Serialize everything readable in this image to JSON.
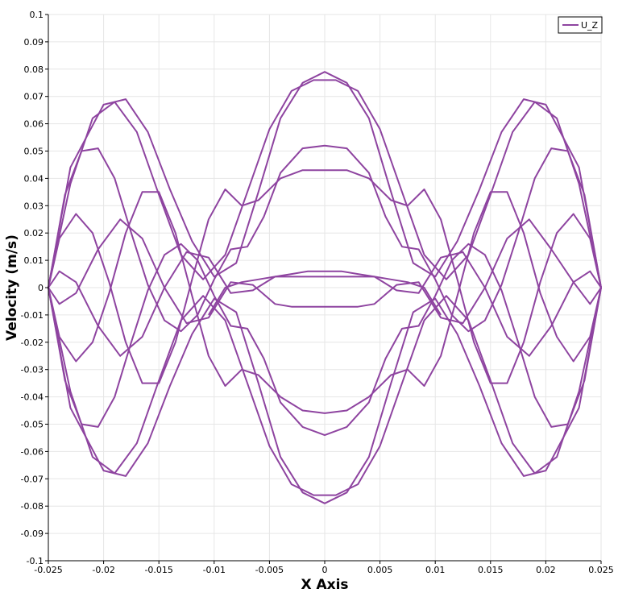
{
  "chart_data": {
    "type": "line",
    "xlabel": "X Axis",
    "ylabel": "Velocity (m/s)",
    "xlim": [
      -0.025,
      0.025
    ],
    "ylim": [
      -0.1,
      0.1
    ],
    "grid": true,
    "legend_position": "top-right",
    "x_ticks": [
      -0.025,
      -0.02,
      -0.015,
      -0.01,
      -0.005,
      0,
      0.005,
      0.01,
      0.015,
      0.02,
      0.025
    ],
    "x_tick_labels": [
      "-0.025",
      "-0.02",
      "-0.015",
      "-0.01",
      "-0.005",
      "0",
      "0.005",
      "0.01",
      "0.015",
      "0.02",
      "0.025"
    ],
    "y_ticks": [
      -0.1,
      -0.09,
      -0.08,
      -0.07,
      -0.06,
      -0.05,
      -0.04,
      -0.03,
      -0.02,
      -0.01,
      0,
      0.01,
      0.02,
      0.03,
      0.04,
      0.05,
      0.06,
      0.07,
      0.08,
      0.09,
      0.1
    ],
    "y_tick_labels": [
      "-0.1",
      "-0.09",
      "-0.08",
      "-0.07",
      "-0.06",
      "-0.05",
      "-0.04",
      "-0.03",
      "-0.02",
      "-0.01",
      "0",
      "0.01",
      "0.02",
      "0.03",
      "0.04",
      "0.05",
      "0.06",
      "0.07",
      "0.08",
      "0.09",
      "0.1"
    ],
    "series_color": "#8e44a0",
    "series": [
      {
        "name": "U_Z",
        "paths": [
          {
            "x": [
              -0.025,
              -0.023,
              -0.02,
              -0.018,
              -0.016,
              -0.014,
              -0.012,
              -0.01,
              -0.008,
              -0.006,
              -0.004,
              -0.002,
              0,
              0.002,
              0.004,
              0.006,
              0.008,
              0.01,
              0.012,
              0.014,
              0.016,
              0.018,
              0.02,
              0.023,
              0.025
            ],
            "y": [
              0,
              0.044,
              0.067,
              0.069,
              0.057,
              0.036,
              0.017,
              0.004,
              0.009,
              0.035,
              0.062,
              0.075,
              0.079,
              0.075,
              0.062,
              0.035,
              0.009,
              0.004,
              0.017,
              0.036,
              0.057,
              0.069,
              0.067,
              0.044,
              0
            ]
          },
          {
            "x": [
              -0.025,
              -0.023,
              -0.021,
              -0.019,
              -0.017,
              -0.015,
              -0.013,
              -0.011,
              -0.009,
              -0.007,
              -0.005,
              -0.003,
              -0.001,
              0,
              0.001,
              0.003,
              0.005,
              0.007,
              0.009,
              0.011,
              0.013,
              0.015,
              0.017,
              0.019,
              0.021,
              0.023,
              0.025
            ],
            "y": [
              0,
              0.038,
              0.062,
              0.068,
              0.057,
              0.034,
              0.012,
              0.003,
              0.012,
              0.035,
              0.058,
              0.072,
              0.076,
              0.076,
              0.076,
              0.072,
              0.058,
              0.035,
              0.012,
              0.003,
              0.012,
              0.034,
              0.057,
              0.068,
              0.062,
              0.038,
              0
            ]
          },
          {
            "x": [
              -0.025,
              -0.023,
              -0.021,
              -0.019,
              -0.017,
              -0.015,
              -0.013,
              -0.011,
              -0.009,
              -0.007,
              -0.005,
              -0.003,
              -0.001,
              0,
              0.001,
              0.003,
              0.005,
              0.007,
              0.009,
              0.011,
              0.013,
              0.015,
              0.017,
              0.019,
              0.021,
              0.023,
              0.025
            ],
            "y": [
              0,
              -0.038,
              -0.062,
              -0.068,
              -0.057,
              -0.034,
              -0.012,
              -0.003,
              -0.012,
              -0.035,
              -0.058,
              -0.072,
              -0.076,
              -0.076,
              -0.076,
              -0.072,
              -0.058,
              -0.035,
              -0.012,
              -0.003,
              -0.012,
              -0.034,
              -0.057,
              -0.068,
              -0.062,
              -0.038,
              0
            ]
          },
          {
            "x": [
              -0.025,
              -0.023,
              -0.02,
              -0.018,
              -0.016,
              -0.014,
              -0.012,
              -0.01,
              -0.008,
              -0.006,
              -0.004,
              -0.002,
              0,
              0.002,
              0.004,
              0.006,
              0.008,
              0.01,
              0.012,
              0.014,
              0.016,
              0.018,
              0.02,
              0.023,
              0.025
            ],
            "y": [
              0,
              -0.044,
              -0.067,
              -0.069,
              -0.057,
              -0.036,
              -0.017,
              -0.004,
              -0.009,
              -0.035,
              -0.062,
              -0.075,
              -0.079,
              -0.075,
              -0.062,
              -0.035,
              -0.009,
              -0.004,
              -0.017,
              -0.036,
              -0.057,
              -0.069,
              -0.067,
              -0.044,
              0
            ]
          },
          {
            "x": [
              -0.025,
              -0.0235,
              -0.022,
              -0.0205,
              -0.019,
              -0.0175,
              -0.016,
              -0.0145,
              -0.013,
              -0.0115,
              -0.01,
              -0.0085,
              -0.007,
              -0.0055,
              -0.004,
              -0.002,
              0,
              0.002,
              0.004,
              0.0055,
              0.007,
              0.0085,
              0.01,
              0.0115,
              0.013,
              0.0145,
              0.016,
              0.0175,
              0.019,
              0.0205,
              0.022,
              0.0235,
              0.025
            ],
            "y": [
              0,
              0.034,
              0.05,
              0.051,
              0.04,
              0.02,
              0.001,
              -0.012,
              -0.016,
              -0.01,
              0.003,
              0.014,
              0.015,
              0.026,
              0.042,
              0.051,
              0.052,
              0.051,
              0.042,
              0.026,
              0.015,
              0.014,
              0.003,
              -0.01,
              -0.016,
              -0.012,
              0.001,
              0.02,
              0.04,
              0.051,
              0.05,
              0.034,
              0
            ]
          },
          {
            "x": [
              -0.025,
              -0.0235,
              -0.022,
              -0.0205,
              -0.019,
              -0.0175,
              -0.016,
              -0.0145,
              -0.013,
              -0.0115,
              -0.01,
              -0.0085,
              -0.007,
              -0.0055,
              -0.004,
              -0.002,
              0,
              0.002,
              0.004,
              0.0055,
              0.007,
              0.0085,
              0.01,
              0.0115,
              0.013,
              0.0145,
              0.016,
              0.0175,
              0.019,
              0.0205,
              0.022,
              0.0235,
              0.025
            ],
            "y": [
              0,
              -0.034,
              -0.05,
              -0.051,
              -0.04,
              -0.02,
              -0.001,
              0.012,
              0.016,
              0.01,
              -0.003,
              -0.014,
              -0.015,
              -0.026,
              -0.042,
              -0.051,
              -0.054,
              -0.051,
              -0.042,
              -0.026,
              -0.015,
              -0.014,
              -0.003,
              0.01,
              0.016,
              0.012,
              -0.001,
              -0.02,
              -0.04,
              -0.051,
              -0.05,
              -0.034,
              0
            ]
          },
          {
            "x": [
              -0.025,
              -0.024,
              -0.0225,
              -0.021,
              -0.0195,
              -0.018,
              -0.0165,
              -0.015,
              -0.0135,
              -0.012,
              -0.0105,
              -0.009,
              -0.0075,
              -0.006,
              -0.004,
              -0.002,
              0,
              0.002,
              0.004,
              0.006,
              0.0075,
              0.009,
              0.0105,
              0.012,
              0.0135,
              0.015,
              0.0165,
              0.018,
              0.0195,
              0.021,
              0.0225,
              0.024,
              0.025
            ],
            "y": [
              0,
              0.018,
              0.027,
              0.02,
              0.002,
              -0.02,
              -0.035,
              -0.035,
              -0.02,
              0.003,
              0.025,
              0.036,
              0.03,
              0.032,
              0.04,
              0.043,
              0.043,
              0.043,
              0.04,
              0.032,
              0.03,
              0.036,
              0.025,
              0.003,
              -0.02,
              -0.035,
              -0.035,
              -0.02,
              0.002,
              0.02,
              0.027,
              0.018,
              0
            ]
          },
          {
            "x": [
              -0.025,
              -0.024,
              -0.0225,
              -0.021,
              -0.0195,
              -0.018,
              -0.0165,
              -0.015,
              -0.0135,
              -0.012,
              -0.0105,
              -0.009,
              -0.0075,
              -0.006,
              -0.004,
              -0.002,
              0,
              0.002,
              0.004,
              0.006,
              0.0075,
              0.009,
              0.0105,
              0.012,
              0.0135,
              0.015,
              0.0165,
              0.018,
              0.0195,
              0.021,
              0.0225,
              0.024,
              0.025
            ],
            "y": [
              0,
              -0.018,
              -0.027,
              -0.02,
              -0.002,
              0.02,
              0.035,
              0.035,
              0.02,
              -0.003,
              -0.025,
              -0.036,
              -0.03,
              -0.032,
              -0.04,
              -0.045,
              -0.046,
              -0.045,
              -0.04,
              -0.032,
              -0.03,
              -0.036,
              -0.025,
              -0.003,
              0.02,
              0.035,
              0.035,
              0.02,
              -0.002,
              -0.018,
              -0.027,
              -0.018,
              0
            ]
          },
          {
            "x": [
              -0.025,
              -0.024,
              -0.0225,
              -0.0205,
              -0.0185,
              -0.0165,
              -0.0145,
              -0.0125,
              -0.0105,
              -0.0085,
              -0.0065,
              -0.0045,
              -0.003,
              -0.0015,
              0,
              0.0015,
              0.003,
              0.0045,
              0.0065,
              0.0085,
              0.0105,
              0.0125,
              0.0145,
              0.0165,
              0.0185,
              0.0205,
              0.0225,
              0.024,
              0.025
            ],
            "y": [
              0,
              0.006,
              0.002,
              -0.014,
              -0.025,
              -0.018,
              0.0,
              0.013,
              0.011,
              -0.002,
              -0.001,
              0.004,
              0.005,
              0.006,
              0.006,
              0.006,
              0.005,
              0.004,
              -0.001,
              -0.002,
              0.011,
              0.013,
              0.0,
              -0.018,
              -0.025,
              -0.014,
              0.002,
              0.006,
              0
            ]
          },
          {
            "x": [
              -0.025,
              -0.024,
              -0.0225,
              -0.0205,
              -0.0185,
              -0.0165,
              -0.0145,
              -0.0125,
              -0.0105,
              -0.0085,
              -0.0065,
              -0.0045,
              -0.003,
              -0.0015,
              0,
              0.0015,
              0.003,
              0.0045,
              0.0065,
              0.0085,
              0.0105,
              0.0125,
              0.0145,
              0.0165,
              0.0185,
              0.0205,
              0.0225,
              0.024,
              0.025
            ],
            "y": [
              0,
              -0.006,
              -0.002,
              0.014,
              0.025,
              0.018,
              0.0,
              -0.013,
              -0.011,
              0.002,
              0.001,
              -0.006,
              -0.007,
              -0.007,
              -0.007,
              -0.007,
              -0.007,
              -0.006,
              0.001,
              0.002,
              -0.011,
              -0.013,
              0.0,
              0.018,
              0.025,
              0.014,
              0.002,
              -0.006,
              0
            ]
          },
          {
            "x": [
              -0.0105,
              -0.009,
              -0.0075,
              -0.006,
              -0.0045,
              -0.003,
              0,
              0.003,
              0.0045,
              0.006,
              0.0075,
              0.009,
              0.0105
            ],
            "y": [
              -0.01,
              0.0,
              0.002,
              0.003,
              0.004,
              0.004,
              0.004,
              0.004,
              0.004,
              0.003,
              0.002,
              0.0,
              -0.01
            ]
          }
        ]
      }
    ]
  }
}
